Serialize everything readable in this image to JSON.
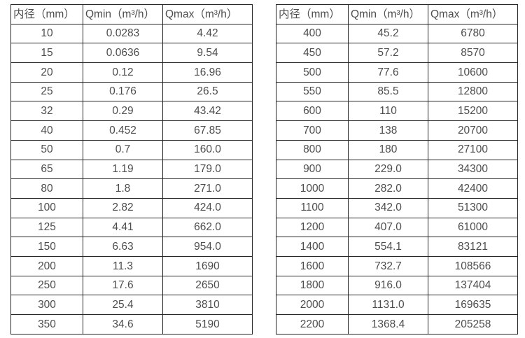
{
  "colors": {
    "background": "#ffffff",
    "border": "#262626",
    "text": "#4d4d4d"
  },
  "headers": {
    "diameter": "内径（mm）",
    "qmin": "Qmin（m³/h）",
    "qmax": "Qmax（m³/h）"
  },
  "left_table": {
    "rows": [
      [
        "10",
        "0.0283",
        "4.42"
      ],
      [
        "15",
        "0.0636",
        "9.54"
      ],
      [
        "20",
        "0.12",
        "16.96"
      ],
      [
        "25",
        "0.176",
        "26.5"
      ],
      [
        "32",
        "0.29",
        "43.42"
      ],
      [
        "40",
        "0.452",
        "67.85"
      ],
      [
        "50",
        "0.7",
        "160.0"
      ],
      [
        "65",
        "1.19",
        "179.0"
      ],
      [
        "80",
        "1.8",
        "271.0"
      ],
      [
        "100",
        "2.82",
        "424.0"
      ],
      [
        "125",
        "4.41",
        "662.0"
      ],
      [
        "150",
        "6.63",
        "954.0"
      ],
      [
        "200",
        "11.3",
        "1690"
      ],
      [
        "250",
        "17.6",
        "2650"
      ],
      [
        "300",
        "25.4",
        "3810"
      ],
      [
        "350",
        "34.6",
        "5190"
      ]
    ]
  },
  "right_table": {
    "rows": [
      [
        "400",
        "45.2",
        "6780"
      ],
      [
        "450",
        "57.2",
        "8570"
      ],
      [
        "500",
        "77.6",
        "10600"
      ],
      [
        "550",
        "85.5",
        "12800"
      ],
      [
        "600",
        "110",
        "15200"
      ],
      [
        "700",
        "138",
        "20700"
      ],
      [
        "800",
        "180",
        "27100"
      ],
      [
        "900",
        "229.0",
        "34300"
      ],
      [
        "1000",
        "282.0",
        "42400"
      ],
      [
        "1100",
        "342.0",
        "51300"
      ],
      [
        "1200",
        "407.0",
        "61000"
      ],
      [
        "1400",
        "554.1",
        "83121"
      ],
      [
        "1600",
        "732.7",
        "108566"
      ],
      [
        "1800",
        "916.0",
        "137404"
      ],
      [
        "2000",
        "1131.0",
        "169635"
      ],
      [
        "2200",
        "1368.4",
        "205258"
      ]
    ]
  }
}
